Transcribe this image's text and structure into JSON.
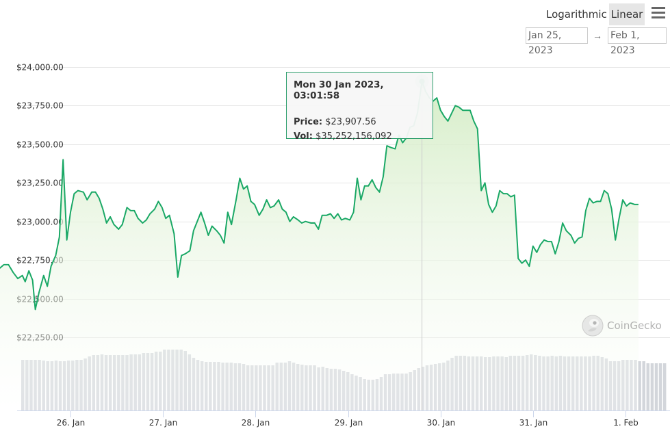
{
  "toolbar": {
    "logarithmic_label": "Logarithmic",
    "linear_label": "Linear",
    "menu_icon": "hamburger-menu-icon",
    "date_from": "Jan 25, 2023",
    "date_arrow": "→",
    "date_to": "Feb 1, 2023"
  },
  "tooltip": {
    "title": "Mon 30 Jan 2023, 03:01:58",
    "price_label": "Price:",
    "price_value": "$23,907.56",
    "vol_label": "Vol:",
    "vol_value": "$35,252,156,092"
  },
  "watermark": {
    "text": "CoinGecko",
    "logo_icon": "coingecko-gecko-icon"
  },
  "colors": {
    "line": "#1aa866",
    "area_top": "#d6eec9",
    "area_bottom": "#ffffff",
    "volume_bar": "#d3d6db",
    "gridline": "#e6e6e6",
    "crosshair": "#cccccc"
  },
  "chart_data": {
    "type": "line",
    "title": "",
    "xlabel": "",
    "ylabel": "",
    "ylim": [
      22150,
      24050
    ],
    "y_ticks": [
      22250,
      22500,
      22750,
      23000,
      23250,
      23500,
      23750,
      24000
    ],
    "y_tick_labels": [
      "$22,250.00",
      "$22,500.00",
      "$22,750.00",
      "$23,000.00",
      "$23,250.00",
      "$23,500.00",
      "$23,750.00",
      "$24,000.00"
    ],
    "x_tick_labels": [
      "26. Jan",
      "27. Jan",
      "28. Jan",
      "29. Jan",
      "30. Jan",
      "31. Jan",
      "1. Feb"
    ],
    "x_range_days": [
      25.07,
      32.27
    ],
    "grid": "horizontal",
    "series": [
      {
        "values": [
          [
            25.08,
            22590
          ],
          [
            25.12,
            22645
          ],
          [
            25.17,
            22640
          ],
          [
            25.22,
            22690
          ],
          [
            25.28,
            22720
          ],
          [
            25.33,
            22720
          ],
          [
            25.38,
            22670
          ],
          [
            25.43,
            22630
          ],
          [
            25.48,
            22650
          ],
          [
            25.51,
            22610
          ],
          [
            25.55,
            22680
          ],
          [
            25.59,
            22620
          ],
          [
            25.62,
            22430
          ],
          [
            25.66,
            22540
          ],
          [
            25.71,
            22650
          ],
          [
            25.75,
            22580
          ],
          [
            25.79,
            22710
          ],
          [
            25.84,
            22780
          ],
          [
            25.88,
            22900
          ],
          [
            25.92,
            23400
          ],
          [
            25.96,
            22880
          ],
          [
            26.0,
            23060
          ],
          [
            26.04,
            23180
          ],
          [
            26.08,
            23200
          ],
          [
            26.14,
            23190
          ],
          [
            26.18,
            23140
          ],
          [
            26.23,
            23190
          ],
          [
            26.27,
            23190
          ],
          [
            26.31,
            23150
          ],
          [
            26.35,
            23080
          ],
          [
            26.39,
            22990
          ],
          [
            26.43,
            23030
          ],
          [
            26.47,
            22980
          ],
          [
            26.52,
            22950
          ],
          [
            26.56,
            22980
          ],
          [
            26.61,
            23090
          ],
          [
            26.65,
            23070
          ],
          [
            26.69,
            23070
          ],
          [
            26.73,
            23020
          ],
          [
            26.78,
            22990
          ],
          [
            26.82,
            23010
          ],
          [
            26.86,
            23050
          ],
          [
            26.91,
            23080
          ],
          [
            26.95,
            23130
          ],
          [
            26.99,
            23090
          ],
          [
            27.03,
            23020
          ],
          [
            27.07,
            23040
          ],
          [
            27.12,
            22920
          ],
          [
            27.16,
            22640
          ],
          [
            27.2,
            22780
          ],
          [
            27.24,
            22790
          ],
          [
            27.29,
            22810
          ],
          [
            27.33,
            22940
          ],
          [
            27.37,
            23000
          ],
          [
            27.41,
            23060
          ],
          [
            27.45,
            22990
          ],
          [
            27.49,
            22910
          ],
          [
            27.53,
            22970
          ],
          [
            27.58,
            22940
          ],
          [
            27.62,
            22910
          ],
          [
            27.66,
            22860
          ],
          [
            27.7,
            23060
          ],
          [
            27.74,
            22980
          ],
          [
            27.79,
            23140
          ],
          [
            27.83,
            23280
          ],
          [
            27.87,
            23210
          ],
          [
            27.91,
            23230
          ],
          [
            27.95,
            23130
          ],
          [
            27.99,
            23110
          ],
          [
            28.04,
            23040
          ],
          [
            28.08,
            23080
          ],
          [
            28.12,
            23140
          ],
          [
            28.16,
            23090
          ],
          [
            28.2,
            23100
          ],
          [
            28.25,
            23140
          ],
          [
            28.29,
            23080
          ],
          [
            28.33,
            23060
          ],
          [
            28.37,
            23000
          ],
          [
            28.41,
            23030
          ],
          [
            28.46,
            23010
          ],
          [
            28.5,
            22990
          ],
          [
            28.54,
            23000
          ],
          [
            28.6,
            22990
          ],
          [
            28.64,
            22990
          ],
          [
            28.68,
            22950
          ],
          [
            28.72,
            23040
          ],
          [
            28.77,
            23040
          ],
          [
            28.81,
            23050
          ],
          [
            28.85,
            23020
          ],
          [
            28.89,
            23050
          ],
          [
            28.93,
            23010
          ],
          [
            28.97,
            23020
          ],
          [
            29.02,
            23010
          ],
          [
            29.06,
            23060
          ],
          [
            29.1,
            23280
          ],
          [
            29.14,
            23140
          ],
          [
            29.18,
            23230
          ],
          [
            29.22,
            23230
          ],
          [
            29.26,
            23270
          ],
          [
            29.3,
            23220
          ],
          [
            29.34,
            23190
          ],
          [
            29.38,
            23290
          ],
          [
            29.42,
            23490
          ],
          [
            29.46,
            23480
          ],
          [
            29.51,
            23470
          ],
          [
            29.55,
            23560
          ],
          [
            29.59,
            23510
          ],
          [
            29.63,
            23540
          ],
          [
            29.67,
            23610
          ],
          [
            29.71,
            23620
          ],
          [
            29.75,
            23700
          ],
          [
            29.8,
            23907
          ],
          [
            29.84,
            23840
          ],
          [
            29.88,
            23800
          ],
          [
            29.92,
            23780
          ],
          [
            29.96,
            23800
          ],
          [
            30.0,
            23720
          ],
          [
            30.04,
            23680
          ],
          [
            30.08,
            23650
          ],
          [
            30.12,
            23700
          ],
          [
            30.16,
            23750
          ],
          [
            30.2,
            23740
          ],
          [
            30.24,
            23720
          ],
          [
            30.28,
            23720
          ],
          [
            30.32,
            23720
          ],
          [
            30.36,
            23650
          ],
          [
            30.4,
            23600
          ],
          [
            30.44,
            23200
          ],
          [
            30.48,
            23250
          ],
          [
            30.52,
            23110
          ],
          [
            30.56,
            23060
          ],
          [
            30.6,
            23100
          ],
          [
            30.64,
            23200
          ],
          [
            30.68,
            23180
          ],
          [
            30.72,
            23180
          ],
          [
            30.76,
            23160
          ],
          [
            30.8,
            23170
          ],
          [
            30.84,
            22760
          ],
          [
            30.88,
            22730
          ],
          [
            30.92,
            22750
          ],
          [
            30.96,
            22710
          ],
          [
            31.0,
            22840
          ],
          [
            31.04,
            22800
          ],
          [
            31.08,
            22850
          ],
          [
            31.12,
            22880
          ],
          [
            31.16,
            22870
          ],
          [
            31.2,
            22870
          ],
          [
            31.24,
            22790
          ],
          [
            31.28,
            22870
          ],
          [
            31.32,
            22990
          ],
          [
            31.36,
            22940
          ],
          [
            31.41,
            22910
          ],
          [
            31.45,
            22860
          ],
          [
            31.49,
            22890
          ],
          [
            31.53,
            22900
          ],
          [
            31.57,
            23070
          ],
          [
            31.61,
            23150
          ],
          [
            31.65,
            23120
          ],
          [
            31.69,
            23130
          ],
          [
            31.73,
            23130
          ],
          [
            31.77,
            23200
          ],
          [
            31.81,
            23180
          ],
          [
            31.85,
            23080
          ],
          [
            31.89,
            22880
          ],
          [
            31.93,
            23020
          ],
          [
            31.97,
            23140
          ],
          [
            32.01,
            23100
          ],
          [
            32.05,
            23120
          ],
          [
            32.1,
            23110
          ],
          [
            32.14,
            23110
          ]
        ]
      }
    ],
    "volume_bars": [
      0.74,
      0.74,
      0.74,
      0.74,
      0.74,
      0.73,
      0.72,
      0.72,
      0.73,
      0.72,
      0.72,
      0.73,
      0.73,
      0.74,
      0.74,
      0.76,
      0.79,
      0.81,
      0.81,
      0.82,
      0.81,
      0.81,
      0.81,
      0.81,
      0.81,
      0.81,
      0.82,
      0.82,
      0.82,
      0.84,
      0.84,
      0.84,
      0.86,
      0.86,
      0.89,
      0.89,
      0.89,
      0.89,
      0.89,
      0.87,
      0.82,
      0.77,
      0.74,
      0.72,
      0.71,
      0.71,
      0.71,
      0.71,
      0.7,
      0.7,
      0.7,
      0.69,
      0.69,
      0.68,
      0.66,
      0.66,
      0.66,
      0.66,
      0.66,
      0.66,
      0.66,
      0.7,
      0.7,
      0.7,
      0.72,
      0.7,
      0.68,
      0.67,
      0.66,
      0.66,
      0.66,
      0.63,
      0.64,
      0.62,
      0.61,
      0.61,
      0.6,
      0.58,
      0.56,
      0.53,
      0.51,
      0.49,
      0.46,
      0.45,
      0.45,
      0.46,
      0.49,
      0.53,
      0.53,
      0.54,
      0.54,
      0.54,
      0.54,
      0.56,
      0.59,
      0.62,
      0.64,
      0.66,
      0.67,
      0.68,
      0.69,
      0.7,
      0.73,
      0.77,
      0.8,
      0.8,
      0.8,
      0.79,
      0.79,
      0.79,
      0.79,
      0.78,
      0.78,
      0.79,
      0.79,
      0.79,
      0.78,
      0.8,
      0.8,
      0.8,
      0.8,
      0.81,
      0.82,
      0.81,
      0.8,
      0.79,
      0.79,
      0.8,
      0.79,
      0.8,
      0.79,
      0.79,
      0.79,
      0.79,
      0.79,
      0.79,
      0.79,
      0.8,
      0.8,
      0.78,
      0.76,
      0.72,
      0.72,
      0.72,
      0.74,
      0.74,
      0.74,
      0.74,
      0.72,
      0.72,
      0.69,
      0.69,
      0.69,
      0.69,
      0.69
    ]
  }
}
